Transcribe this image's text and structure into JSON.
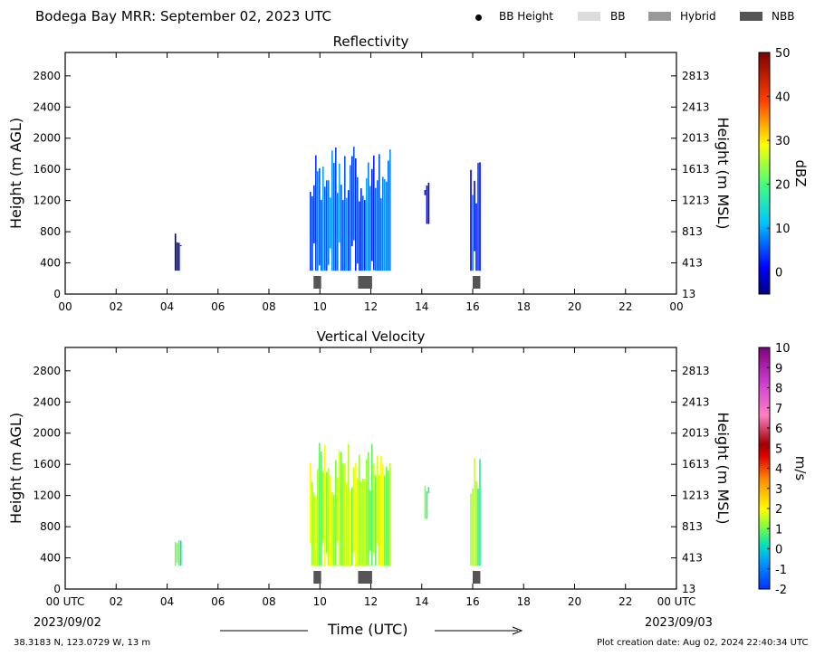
{
  "header": {
    "title": "Bodega Bay MRR:  September 02, 2023 UTC",
    "legend": [
      {
        "label": "BB Height",
        "kind": "dot",
        "color": "#000000"
      },
      {
        "label": "BB",
        "kind": "box",
        "color": "#dcdcdc"
      },
      {
        "label": "Hybrid",
        "kind": "box",
        "color": "#999999"
      },
      {
        "label": "NBB",
        "kind": "box",
        "color": "#555555"
      }
    ]
  },
  "footer": {
    "location": "38.3183 N, 123.0729 W, 13 m",
    "created": "Plot creation date: Aug 02, 2024 22:40:34 UTC",
    "time_label": "Time (UTC)",
    "date_left": "2023/09/02",
    "date_right": "2023/09/03"
  },
  "chart_data": [
    {
      "type": "heatmap",
      "title": "Reflectivity",
      "ylabel": "Height (m AGL)",
      "ylabel_right": "Height (m MSL)",
      "xlim": [
        0,
        24
      ],
      "ylim": [
        0,
        3100
      ],
      "x_ticks": [
        "00",
        "02",
        "04",
        "06",
        "08",
        "10",
        "12",
        "14",
        "16",
        "18",
        "20",
        "22",
        "00"
      ],
      "y_ticks": [
        0,
        400,
        800,
        1200,
        1600,
        2000,
        2400,
        2800
      ],
      "y_ticks_right": [
        13,
        413,
        813,
        1213,
        1613,
        2013,
        2413,
        2813
      ],
      "colorbar": {
        "label": "dBZ",
        "min": -5,
        "max": 50,
        "ticks": [
          0,
          10,
          20,
          30,
          40,
          50
        ]
      },
      "precip_columns": [
        {
          "start": 4.3,
          "end": 4.55,
          "base": 300,
          "top": 800,
          "value": -2
        },
        {
          "start": 9.6,
          "end": 12.8,
          "base": 300,
          "top": 1900,
          "value": 5
        },
        {
          "start": 14.1,
          "end": 14.3,
          "base": 900,
          "top": 1500,
          "value": -1
        },
        {
          "start": 15.9,
          "end": 16.3,
          "base": 300,
          "top": 1700,
          "value": 3
        }
      ],
      "nbb_markers": [
        {
          "start": 9.75,
          "end": 10.05
        },
        {
          "start": 11.5,
          "end": 12.05
        },
        {
          "start": 16.0,
          "end": 16.3
        }
      ]
    },
    {
      "type": "heatmap",
      "title": "Vertical Velocity",
      "ylabel": "Height (m AGL)",
      "ylabel_right": "Height (m MSL)",
      "xlim": [
        0,
        24
      ],
      "ylim": [
        0,
        3100
      ],
      "x_ticks": [
        "00 UTC",
        "02",
        "04",
        "06",
        "08",
        "10",
        "12",
        "14",
        "16",
        "18",
        "20",
        "22",
        "00 UTC"
      ],
      "y_ticks": [
        0,
        400,
        800,
        1200,
        1600,
        2000,
        2400,
        2800
      ],
      "y_ticks_right": [
        13,
        413,
        813,
        1213,
        1613,
        2013,
        2413,
        2813
      ],
      "colorbar": {
        "label": "m/s",
        "min": -2,
        "max": 10,
        "ticks": [
          -2,
          -1,
          0,
          1,
          2,
          3,
          4,
          5,
          6,
          7,
          8,
          9,
          10
        ]
      },
      "precip_columns": [
        {
          "start": 4.3,
          "end": 4.55,
          "base": 300,
          "top": 800,
          "value": 0.5
        },
        {
          "start": 9.6,
          "end": 12.8,
          "base": 300,
          "top": 1900,
          "value": 1.5
        },
        {
          "start": 14.1,
          "end": 14.3,
          "base": 900,
          "top": 1500,
          "value": 0.5
        },
        {
          "start": 15.9,
          "end": 16.3,
          "base": 300,
          "top": 1700,
          "value": 1.0
        }
      ],
      "nbb_markers": [
        {
          "start": 9.75,
          "end": 10.05
        },
        {
          "start": 11.5,
          "end": 12.05
        },
        {
          "start": 16.0,
          "end": 16.3
        }
      ]
    }
  ]
}
